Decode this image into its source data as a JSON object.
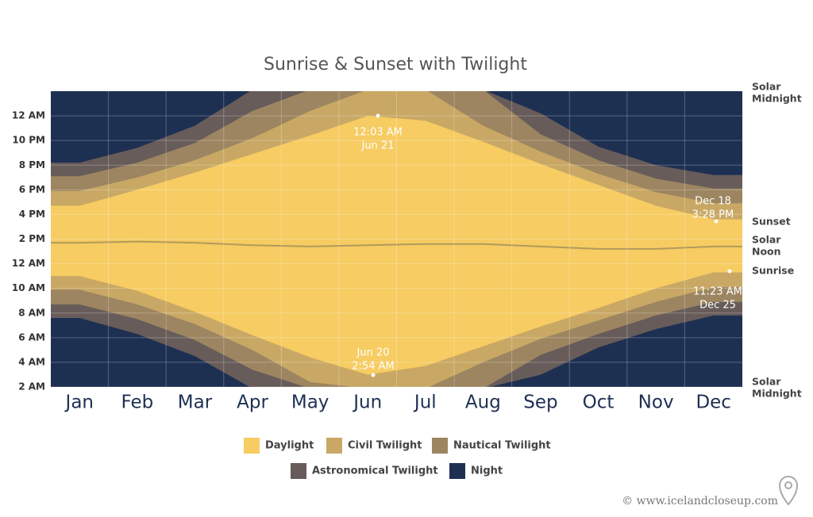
{
  "chart_data": {
    "type": "twilight-area",
    "title": "Sunrise & Sunset with Twilight",
    "categories": [
      "Jan",
      "Feb",
      "Mar",
      "Apr",
      "May",
      "Jun",
      "Jul",
      "Aug",
      "Sep",
      "Oct",
      "Nov",
      "Dec"
    ],
    "ylim": [
      2,
      26
    ],
    "yticks": [
      {
        "value": 2,
        "label": "2 AM"
      },
      {
        "value": 4,
        "label": "4 AM"
      },
      {
        "value": 6,
        "label": "6 AM"
      },
      {
        "value": 8,
        "label": "8 AM"
      },
      {
        "value": 10,
        "label": "10 AM"
      },
      {
        "value": 12,
        "label": "12 AM"
      },
      {
        "value": 14,
        "label": "2 PM"
      },
      {
        "value": 16,
        "label": "4 PM"
      },
      {
        "value": 18,
        "label": "6 PM"
      },
      {
        "value": 20,
        "label": "8 PM"
      },
      {
        "value": 22,
        "label": "10 PM"
      },
      {
        "value": 24,
        "label": "12 AM"
      }
    ],
    "grid": true,
    "background_name": "Night",
    "background_color": "#1e3052",
    "series": [
      {
        "name": "Astronomical Twilight",
        "color": "#675c5a",
        "dusk": [
          20.2,
          21.4,
          23.2,
          null,
          null,
          null,
          null,
          null,
          24.2,
          21.5,
          20.0,
          19.2
        ],
        "dawn": [
          7.6,
          6.3,
          4.5,
          null,
          null,
          null,
          null,
          null,
          3.0,
          5.2,
          6.7,
          7.8
        ]
      },
      {
        "name": "Nautical Twilight",
        "color": "#9c8560",
        "dusk": [
          19.1,
          20.2,
          21.8,
          24.4,
          null,
          null,
          null,
          null,
          22.5,
          20.4,
          18.9,
          18.1
        ],
        "dawn": [
          8.7,
          7.5,
          5.8,
          3.4,
          null,
          null,
          null,
          null,
          4.6,
          6.3,
          7.8,
          8.9
        ]
      },
      {
        "name": "Civil Twilight",
        "color": "#c9a865",
        "dusk": [
          17.9,
          19.0,
          20.4,
          22.2,
          24.4,
          null,
          null,
          23.2,
          21.1,
          19.3,
          17.8,
          16.9
        ],
        "dawn": [
          9.9,
          8.7,
          7.1,
          5.0,
          2.4,
          null,
          null,
          4.0,
          5.9,
          7.4,
          8.9,
          10.1
        ]
      },
      {
        "name": "Daylight",
        "color": "#f6cc63",
        "dusk": [
          16.7,
          18.0,
          19.4,
          20.9,
          22.4,
          24.0,
          23.6,
          21.9,
          20.1,
          18.4,
          16.7,
          15.6
        ],
        "dawn": [
          11.0,
          9.8,
          8.1,
          6.2,
          4.4,
          3.0,
          3.7,
          5.3,
          6.9,
          8.4,
          10.0,
          11.3
        ]
      }
    ],
    "noon": {
      "color": "#b39a5c",
      "values": [
        13.7,
        13.8,
        13.7,
        13.5,
        13.4,
        13.5,
        13.6,
        13.6,
        13.4,
        13.2,
        13.2,
        13.4
      ]
    },
    "legend_order": [
      3,
      2,
      1,
      0
    ],
    "annotations": [
      [
        "12:03 AM",
        "Jun 21"
      ],
      [
        "Jun 20",
        "2:54 AM"
      ],
      [
        "Dec 18",
        "3:28 PM"
      ],
      [
        "11:23 AM",
        "Dec 25"
      ]
    ],
    "side_labels": [
      [
        "Solar",
        "Midnight"
      ],
      [
        "Sunset"
      ],
      [
        "Solar",
        "Noon"
      ],
      [
        "Sunrise"
      ],
      [
        "Solar",
        "Midnight"
      ]
    ],
    "credit": "© www.icelandcloseup.com"
  }
}
